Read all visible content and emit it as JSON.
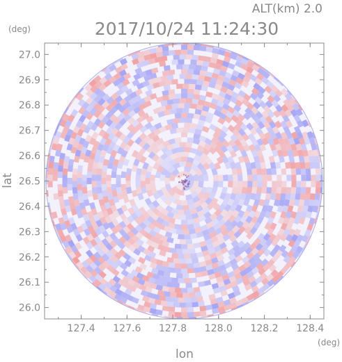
{
  "header": {
    "alt_label": "ALT(km)  2.0",
    "datetime": "2017/10/24  11:24:30"
  },
  "chart_data": {
    "type": "heatmap",
    "title": "2017/10/24  11:24:30",
    "xlabel": "lon",
    "ylabel": "lat",
    "x_unit": "(deg)",
    "y_unit": "(deg)",
    "xlim": [
      127.24,
      128.46
    ],
    "ylim": [
      25.955,
      27.045
    ],
    "x_ticks": [
      127.4,
      127.6,
      127.8,
      128.0,
      128.2,
      128.4
    ],
    "x_tick_labels": [
      "127.4",
      "127.6",
      "127.8",
      "128.0",
      "128.2",
      "128.4"
    ],
    "y_ticks": [
      26.0,
      26.1,
      26.2,
      26.3,
      26.4,
      26.5,
      26.6,
      26.7,
      26.8,
      26.9,
      27.0
    ],
    "y_tick_labels": [
      "26.0",
      "26.1",
      "26.2",
      "26.3",
      "26.4",
      "26.5",
      "26.6",
      "26.7",
      "26.8",
      "26.9",
      "27.0"
    ],
    "radar_center": [
      127.85,
      26.5
    ],
    "radar_radius_lat": 0.545,
    "grid": false,
    "colors": {
      "positive": "#f08a8a",
      "negative": "#8c8cf2",
      "neutral": "#ffffff",
      "axis": "#888888"
    }
  }
}
